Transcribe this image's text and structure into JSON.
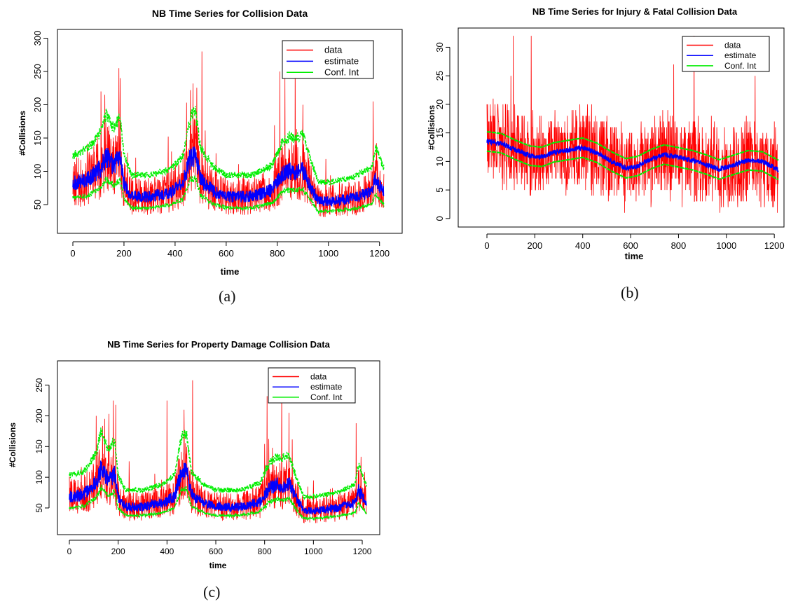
{
  "chart_data": [
    {
      "id": "a",
      "type": "line",
      "title": "NB Time Series for Collision Data",
      "xlabel": "time",
      "ylabel": "#Collisions",
      "caption": "(a)",
      "xlim": [
        0,
        1220
      ],
      "ylim": [
        10,
        310
      ],
      "xticks": [
        0,
        200,
        400,
        600,
        800,
        1000,
        1200
      ],
      "yticks": [
        50,
        100,
        150,
        200,
        250,
        300
      ],
      "legend": {
        "position": "top-right",
        "entries": [
          "data",
          "estimate",
          "Conf. Int"
        ]
      },
      "n_points": 1218,
      "estimate_anchors": {
        "x": [
          0,
          60,
          110,
          130,
          160,
          185,
          200,
          230,
          300,
          380,
          430,
          460,
          480,
          500,
          550,
          600,
          700,
          780,
          820,
          850,
          870,
          900,
          930,
          960,
          1000,
          1100,
          1170,
          1185,
          1218
        ],
        "y": [
          82,
          88,
          105,
          122,
          108,
          120,
          82,
          62,
          62,
          68,
          80,
          120,
          125,
          88,
          70,
          62,
          62,
          72,
          95,
          100,
          98,
          102,
          78,
          55,
          55,
          60,
          70,
          90,
          68
        ]
      },
      "spikes": [
        {
          "x": 110,
          "y": 220
        },
        {
          "x": 125,
          "y": 215
        },
        {
          "x": 180,
          "y": 255
        },
        {
          "x": 185,
          "y": 240
        },
        {
          "x": 460,
          "y": 222
        },
        {
          "x": 470,
          "y": 232
        },
        {
          "x": 505,
          "y": 280
        },
        {
          "x": 810,
          "y": 250
        },
        {
          "x": 830,
          "y": 240
        },
        {
          "x": 870,
          "y": 275
        },
        {
          "x": 900,
          "y": 200
        },
        {
          "x": 1175,
          "y": 205
        }
      ],
      "colors": {
        "data": "#ff0000",
        "estimate": "#0000ff",
        "conf": "#00ee00"
      }
    },
    {
      "id": "b",
      "type": "line",
      "title": "NB Time Series for Injury & Fatal Collision Data",
      "xlabel": "time",
      "ylabel": "#Collisions",
      "caption": "(b)",
      "xlim": [
        0,
        1220
      ],
      "ylim": [
        -1,
        33
      ],
      "xticks": [
        0,
        200,
        400,
        600,
        800,
        1000,
        1200
      ],
      "yticks": [
        0,
        5,
        10,
        15,
        20,
        25,
        30
      ],
      "legend": {
        "position": "top-right",
        "entries": [
          "data",
          "estimate",
          "Conf. Int"
        ]
      },
      "n_points": 1218,
      "estimate_anchors": {
        "x": [
          0,
          60,
          120,
          180,
          230,
          280,
          340,
          400,
          460,
          520,
          580,
          630,
          690,
          740,
          790,
          860,
          920,
          970,
          1030,
          1090,
          1150,
          1218
        ],
        "y": [
          13.5,
          13.2,
          12.0,
          11.0,
          10.8,
          11.6,
          12.0,
          12.4,
          11.5,
          10.0,
          8.8,
          9.2,
          10.5,
          11.2,
          10.8,
          10.2,
          9.4,
          8.6,
          9.4,
          10.2,
          10.0,
          8.5
        ]
      },
      "spikes": [
        {
          "x": 110,
          "y": 32
        },
        {
          "x": 185,
          "y": 32
        },
        {
          "x": 865,
          "y": 32
        },
        {
          "x": 780,
          "y": 27
        },
        {
          "x": 100,
          "y": 25
        },
        {
          "x": 1120,
          "y": 25
        }
      ],
      "colors": {
        "data": "#ff0000",
        "estimate": "#0000ff",
        "conf": "#00ee00"
      }
    },
    {
      "id": "c",
      "type": "line",
      "title": "NB Time Series for Property Damage Collision Data",
      "xlabel": "time",
      "ylabel": "#Collisions",
      "caption": "(c)",
      "xlim": [
        0,
        1220
      ],
      "ylim": [
        10,
        285
      ],
      "xticks": [
        0,
        200,
        400,
        600,
        800,
        1000,
        1200
      ],
      "yticks": [
        50,
        100,
        150,
        200,
        250
      ],
      "legend": {
        "position": "top-right",
        "entries": [
          "data",
          "estimate",
          "Conf. Int"
        ]
      },
      "n_points": 1218,
      "estimate_anchors": {
        "x": [
          0,
          60,
          110,
          130,
          160,
          185,
          200,
          230,
          300,
          380,
          430,
          460,
          480,
          500,
          550,
          600,
          700,
          780,
          820,
          850,
          870,
          900,
          930,
          960,
          1000,
          1100,
          1170,
          1185,
          1218
        ],
        "y": [
          68,
          72,
          92,
          115,
          95,
          105,
          68,
          52,
          52,
          58,
          68,
          110,
          112,
          72,
          58,
          52,
          52,
          60,
          82,
          88,
          86,
          90,
          65,
          45,
          45,
          50,
          58,
          80,
          56
        ]
      },
      "spikes": [
        {
          "x": 110,
          "y": 200
        },
        {
          "x": 180,
          "y": 225
        },
        {
          "x": 190,
          "y": 218
        },
        {
          "x": 400,
          "y": 225
        },
        {
          "x": 470,
          "y": 210
        },
        {
          "x": 505,
          "y": 258
        },
        {
          "x": 810,
          "y": 232
        },
        {
          "x": 870,
          "y": 245
        },
        {
          "x": 900,
          "y": 205
        },
        {
          "x": 1175,
          "y": 188
        }
      ],
      "colors": {
        "data": "#ff0000",
        "estimate": "#0000ff",
        "conf": "#00ee00"
      }
    }
  ]
}
